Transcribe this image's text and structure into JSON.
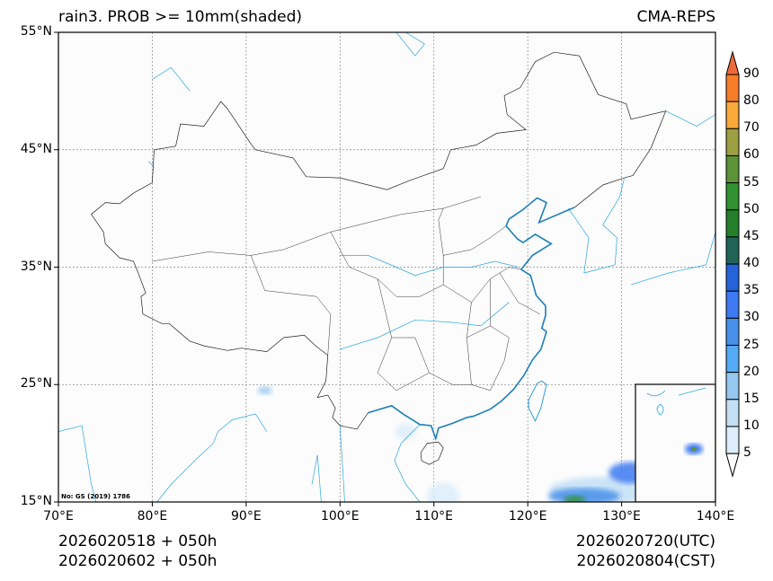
{
  "title_left": "rain3. PROB >= 10mm(shaded)",
  "title_right": "CMA-REPS",
  "lon_labels": [
    "70°E",
    "80°E",
    "90°E",
    "100°E",
    "110°E",
    "120°E",
    "130°E",
    "140°E"
  ],
  "lat_labels": [
    "15°N",
    "25°N",
    "35°N",
    "45°N",
    "55°N"
  ],
  "watermark": "No: GS (2019) 1786",
  "footer": {
    "init_utc": "2026020518  +  050h",
    "init_cst": "2026020602  +  050h",
    "valid_utc": "2026020720(UTC)",
    "valid_cst": "2026020804(CST)"
  },
  "colorbar": {
    "labels": [
      "90",
      "80",
      "70",
      "60",
      "55",
      "50",
      "45",
      "40",
      "35",
      "30",
      "25",
      "20",
      "15",
      "10",
      "5"
    ],
    "colors": [
      "#f87d2b",
      "#f9a83a",
      "#9ca040",
      "#5c9336",
      "#31902f",
      "#247f2b",
      "#1f6457",
      "#2563d9",
      "#3e7af2",
      "#4690ea",
      "#53aaf5",
      "#95c7ef",
      "#c2dff5",
      "#ddeefa"
    ],
    "over_color": "#ee6a3a",
    "under_color": "#ffffff"
  }
}
